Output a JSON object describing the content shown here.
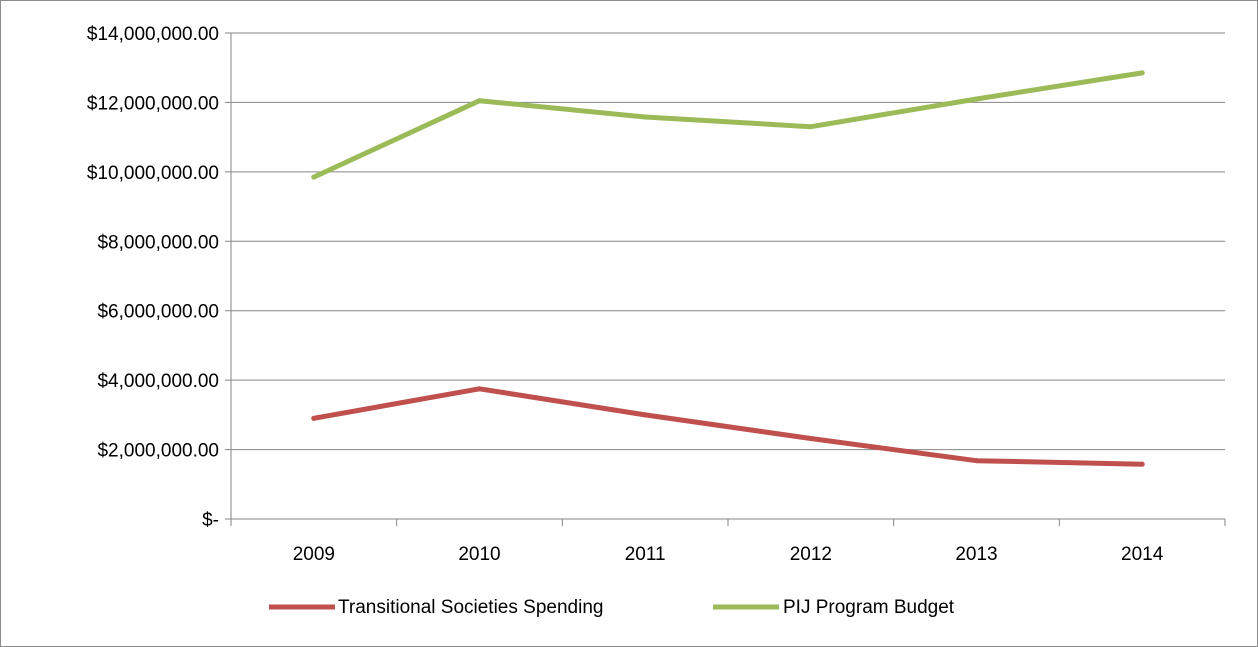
{
  "chart_data": {
    "type": "line",
    "title": "",
    "xlabel": "",
    "ylabel": "",
    "categories": [
      "2009",
      "2010",
      "2011",
      "2012",
      "2013",
      "2014"
    ],
    "series": [
      {
        "name": "Transitional Societies Spending",
        "color": "#c0504d",
        "values": [
          2900000,
          3750000,
          3000000,
          2320000,
          1680000,
          1580000
        ]
      },
      {
        "name": "PIJ Program Budget",
        "color": "#9bbb59",
        "values": [
          9850000,
          12050000,
          11580000,
          11300000,
          12100000,
          12850000
        ]
      }
    ],
    "ylim": [
      0,
      14000000
    ],
    "y_ticks": [
      0,
      2000000,
      4000000,
      6000000,
      8000000,
      10000000,
      12000000,
      14000000
    ],
    "y_tick_labels": [
      "$-",
      "$2,000,000.00",
      "$4,000,000.00",
      "$6,000,000.00",
      "$8,000,000.00",
      "$10,000,000.00",
      "$12,000,000.00",
      "$14,000,000.00"
    ],
    "grid": true,
    "legend_position": "bottom"
  }
}
